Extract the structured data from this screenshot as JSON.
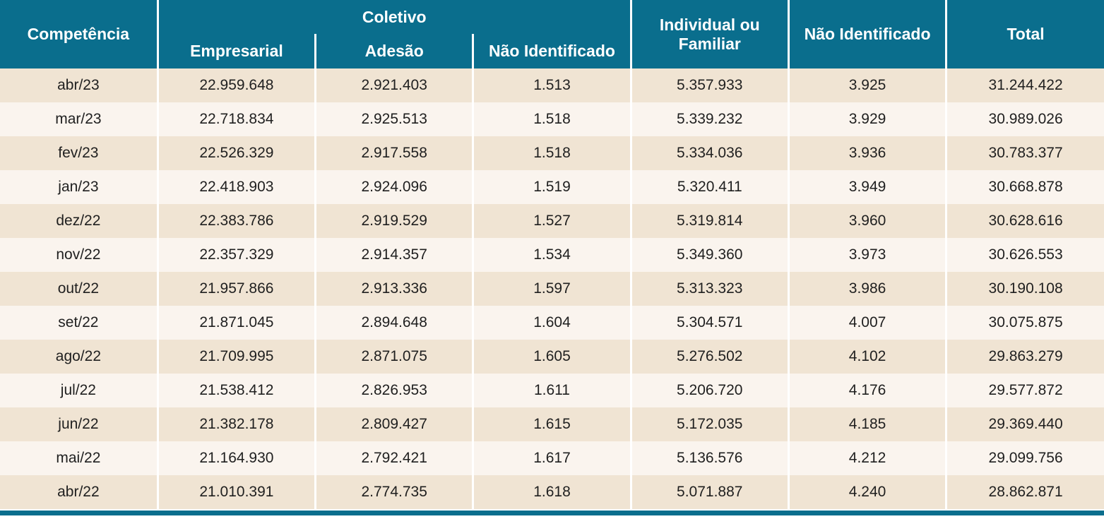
{
  "chart_data": {
    "type": "table",
    "header": {
      "competencia": "Competência",
      "coletivo_group": "Coletivo",
      "coletivo_empresarial": "Empresarial",
      "coletivo_adesao": "Adesão",
      "coletivo_nao_identificado": "Não Identificado",
      "individual_familiar": "Individual ou Familiar",
      "nao_identificado": "Não Identificado",
      "total": "Total"
    },
    "columns": [
      "Competência",
      "Coletivo - Empresarial",
      "Coletivo - Adesão",
      "Coletivo - Não Identificado",
      "Individual ou Familiar",
      "Não Identificado",
      "Total"
    ],
    "rows": [
      [
        "abr/23",
        "22.959.648",
        "2.921.403",
        "1.513",
        "5.357.933",
        "3.925",
        "31.244.422"
      ],
      [
        "mar/23",
        "22.718.834",
        "2.925.513",
        "1.518",
        "5.339.232",
        "3.929",
        "30.989.026"
      ],
      [
        "fev/23",
        "22.526.329",
        "2.917.558",
        "1.518",
        "5.334.036",
        "3.936",
        "30.783.377"
      ],
      [
        "jan/23",
        "22.418.903",
        "2.924.096",
        "1.519",
        "5.320.411",
        "3.949",
        "30.668.878"
      ],
      [
        "dez/22",
        "22.383.786",
        "2.919.529",
        "1.527",
        "5.319.814",
        "3.960",
        "30.628.616"
      ],
      [
        "nov/22",
        "22.357.329",
        "2.914.357",
        "1.534",
        "5.349.360",
        "3.973",
        "30.626.553"
      ],
      [
        "out/22",
        "21.957.866",
        "2.913.336",
        "1.597",
        "5.313.323",
        "3.986",
        "30.190.108"
      ],
      [
        "set/22",
        "21.871.045",
        "2.894.648",
        "1.604",
        "5.304.571",
        "4.007",
        "30.075.875"
      ],
      [
        "ago/22",
        "21.709.995",
        "2.871.075",
        "1.605",
        "5.276.502",
        "4.102",
        "29.863.279"
      ],
      [
        "jul/22",
        "21.538.412",
        "2.826.953",
        "1.611",
        "5.206.720",
        "4.176",
        "29.577.872"
      ],
      [
        "jun/22",
        "21.382.178",
        "2.809.427",
        "1.615",
        "5.172.035",
        "4.185",
        "29.369.440"
      ],
      [
        "mai/22",
        "21.164.930",
        "2.792.421",
        "1.617",
        "5.136.576",
        "4.212",
        "29.099.756"
      ],
      [
        "abr/22",
        "21.010.391",
        "2.774.735",
        "1.618",
        "5.071.887",
        "4.240",
        "28.862.871"
      ]
    ]
  },
  "colors": {
    "header_teal": "#0a6e8d",
    "row_beige": "#f0e4d3",
    "row_cream": "#faf4ee",
    "divider": "#ffffff",
    "text": "#1f1f1f",
    "header_text": "#ffffff"
  }
}
